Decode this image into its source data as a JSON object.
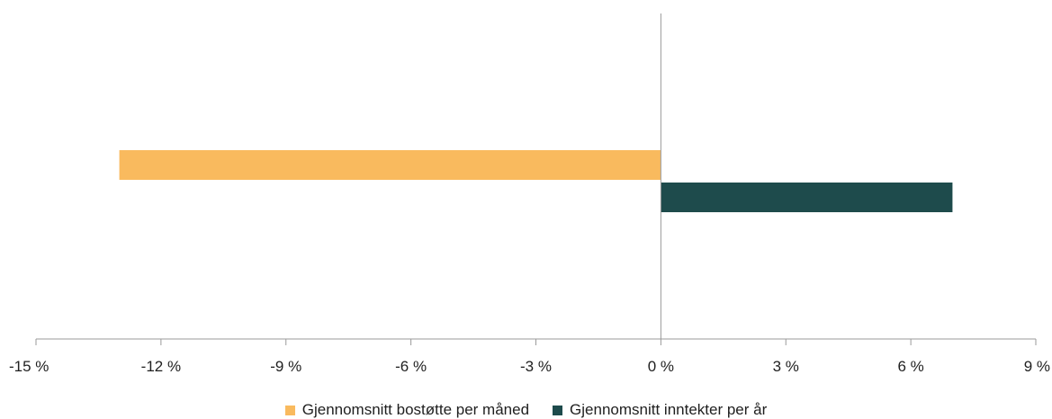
{
  "chart_data": {
    "type": "bar",
    "orientation": "horizontal",
    "title": "",
    "xlabel": "",
    "ylabel": "",
    "xlim": [
      -15,
      9
    ],
    "xticks": [
      -15,
      -12,
      -9,
      -6,
      -3,
      0,
      3,
      6,
      9
    ],
    "tick_labels": [
      "-15 %",
      "-12 %",
      "-9 %",
      "-6 %",
      "-3 %",
      "0 %",
      "3 %",
      "6 %",
      "9 %"
    ],
    "grid": false,
    "legend_position": "bottom",
    "series": [
      {
        "name": "Gjennomsnitt bostøtte per måned",
        "value": -13,
        "color": "#F9BA5E"
      },
      {
        "name": "Gjennomsnitt inntekter per år",
        "value": 7,
        "color": "#1E4B4C"
      }
    ]
  }
}
